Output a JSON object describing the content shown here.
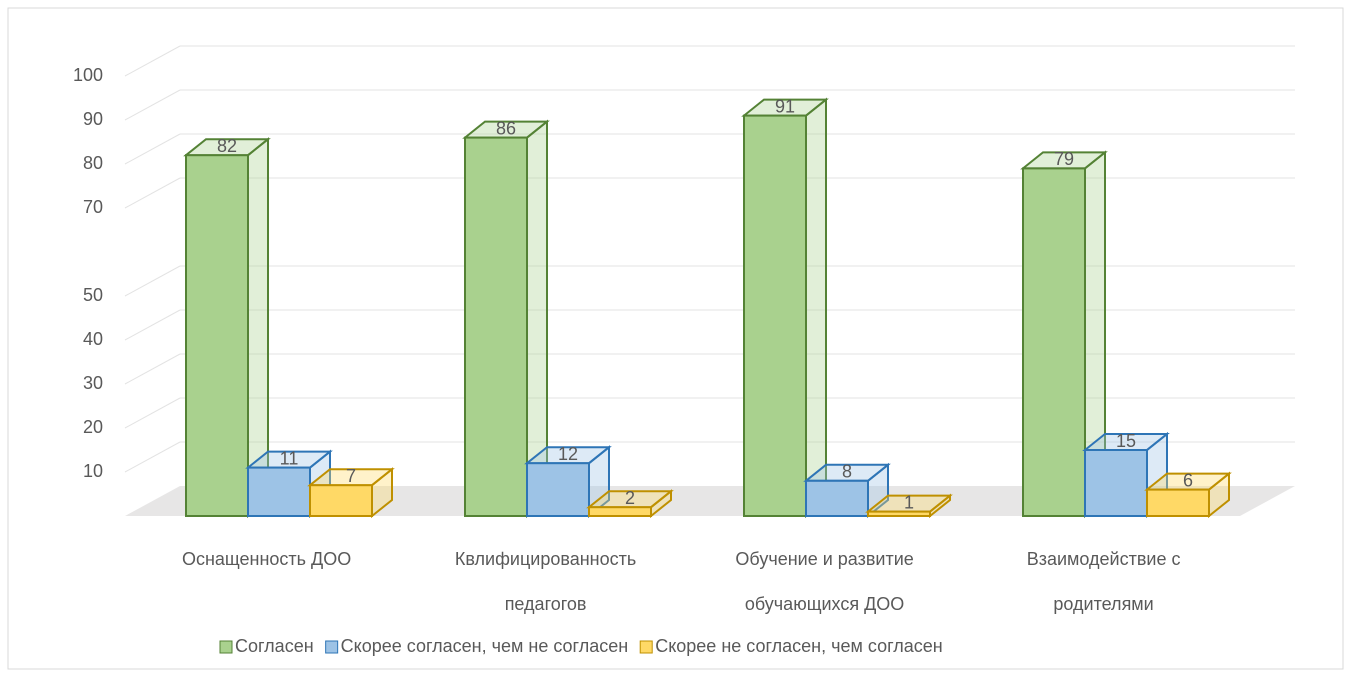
{
  "chart_data": {
    "type": "bar3d",
    "categories": [
      [
        "Оснащенность ДОО"
      ],
      [
        "Квлифицированность",
        "педагогов"
      ],
      [
        "Обучение и развитие",
        "обучающихся ДОО"
      ],
      [
        "Взаимодействие с",
        "родителями"
      ]
    ],
    "series": [
      {
        "name": "Согласен",
        "color": "#a9d18e",
        "border": "#548235",
        "values": [
          82,
          86,
          91,
          79
        ]
      },
      {
        "name": "Скорее согласен, чем не согласен",
        "color": "#9dc3e6",
        "border": "#2e75b6",
        "values": [
          11,
          12,
          8,
          15
        ]
      },
      {
        "name": "Скорее не согласен, чем согласен",
        "color": "#ffd966",
        "border": "#bf9000",
        "values": [
          7,
          2,
          1,
          6
        ]
      }
    ],
    "ylim": [
      0,
      100
    ],
    "yticks": [
      10,
      20,
      30,
      40,
      50,
      70,
      80,
      90,
      100
    ],
    "grid": true,
    "legend": "bottom"
  }
}
